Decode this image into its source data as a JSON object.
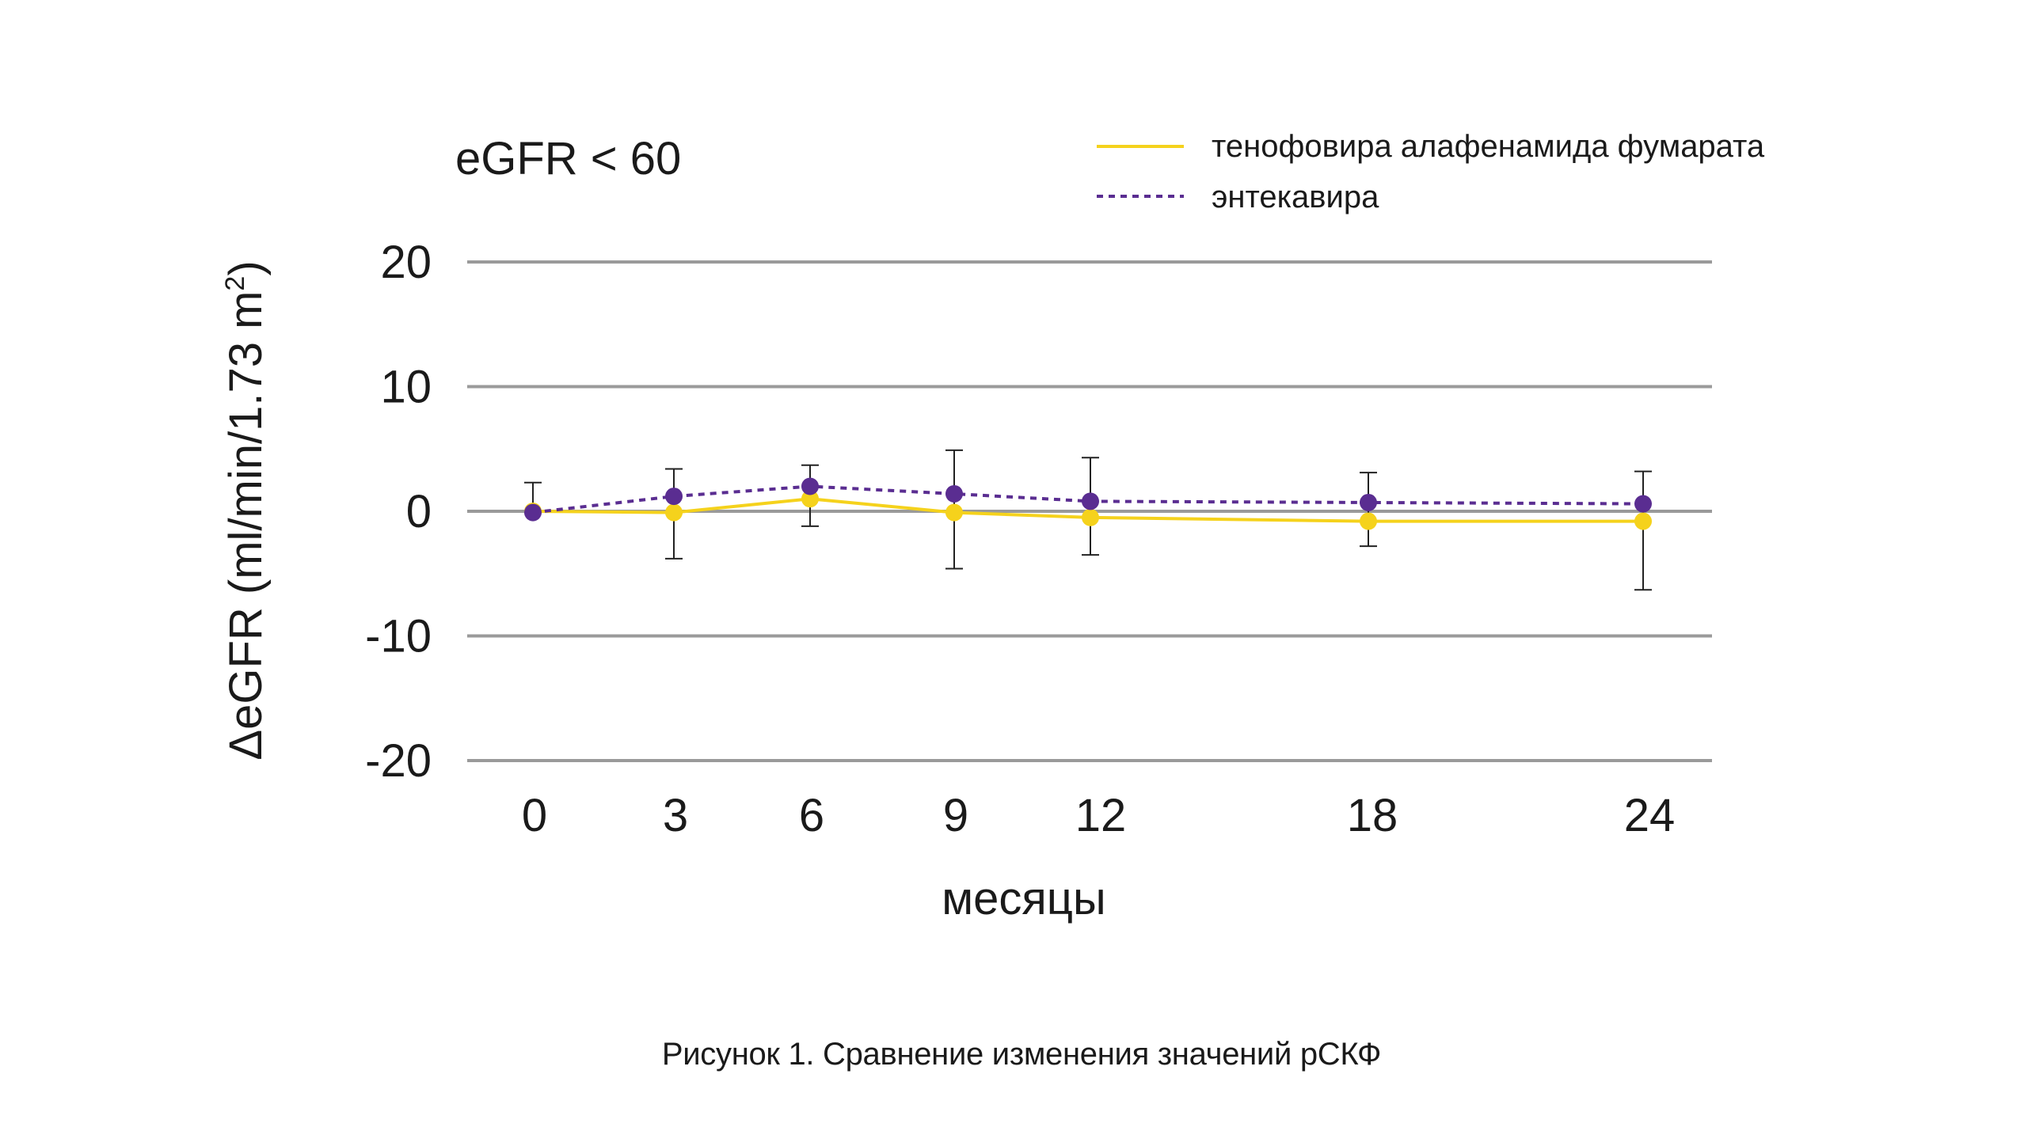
{
  "chart_data": {
    "type": "line",
    "subtitle": "eGFR < 60",
    "ylabel_main": "ΔeGFR (ml/min/1.73 m",
    "ylabel_sup": "2",
    "ylabel_close": ")",
    "xlabel": "месяцы",
    "x": [
      0,
      3,
      6,
      9,
      12,
      18,
      24
    ],
    "ylim": [
      -20,
      20
    ],
    "yticks": [
      20,
      10,
      0,
      -10,
      -20
    ],
    "grid": true,
    "legend_position": "top-right",
    "series": [
      {
        "name": "тенофовира алафенамида фумарата",
        "color": "#f5d21c",
        "line_style": "solid",
        "values": [
          0,
          -0.1,
          1.0,
          -0.1,
          -0.5,
          -0.8,
          -0.8
        ]
      },
      {
        "name": "энтекавира",
        "color": "#5a2d91",
        "line_style": "dashed",
        "values": [
          -0.1,
          1.2,
          2.0,
          1.4,
          0.8,
          0.7,
          0.6
        ],
        "error_bars": [
          [
            -0.1,
            2.3
          ],
          [
            -3.8,
            3.4
          ],
          [
            -1.2,
            3.7
          ],
          [
            -4.6,
            4.9
          ],
          [
            -3.5,
            4.3
          ],
          [
            -2.8,
            3.1
          ],
          [
            -6.3,
            3.2
          ]
        ]
      }
    ]
  },
  "caption": "Рисунок 1. Сравнение изменения значений рСКФ"
}
